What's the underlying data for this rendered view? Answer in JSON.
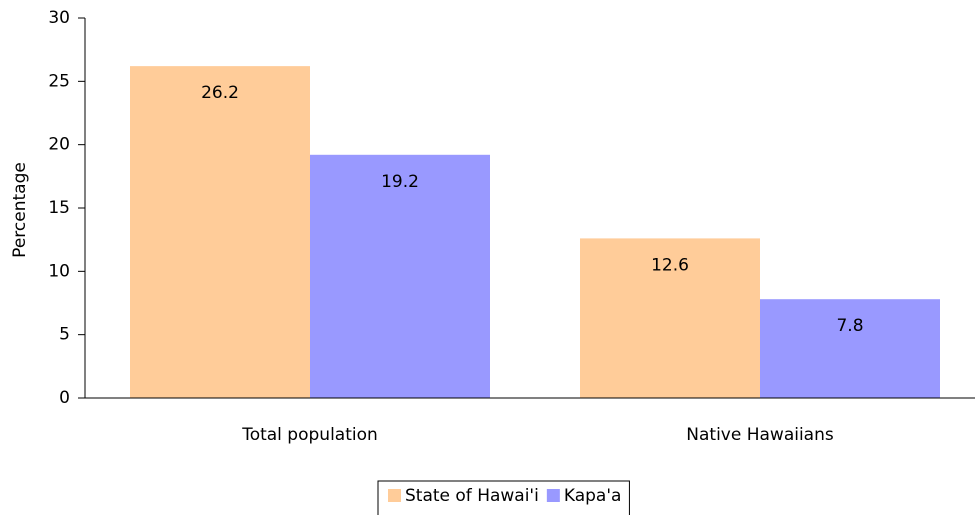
{
  "chart_data": {
    "type": "bar",
    "y_label": "Percentage",
    "categories": [
      "Total population",
      "Native Hawaiians"
    ],
    "series": [
      {
        "name": "State of Hawai'i",
        "color": "#ffcc99",
        "values": [
          26.2,
          12.6
        ]
      },
      {
        "name": "Kapa'a",
        "color": "#9999ff",
        "values": [
          19.2,
          7.8
        ]
      }
    ],
    "ylim": [
      0,
      30
    ],
    "yticks": [
      0,
      5,
      10,
      15,
      20,
      25,
      30
    ],
    "legend": "bottom"
  }
}
